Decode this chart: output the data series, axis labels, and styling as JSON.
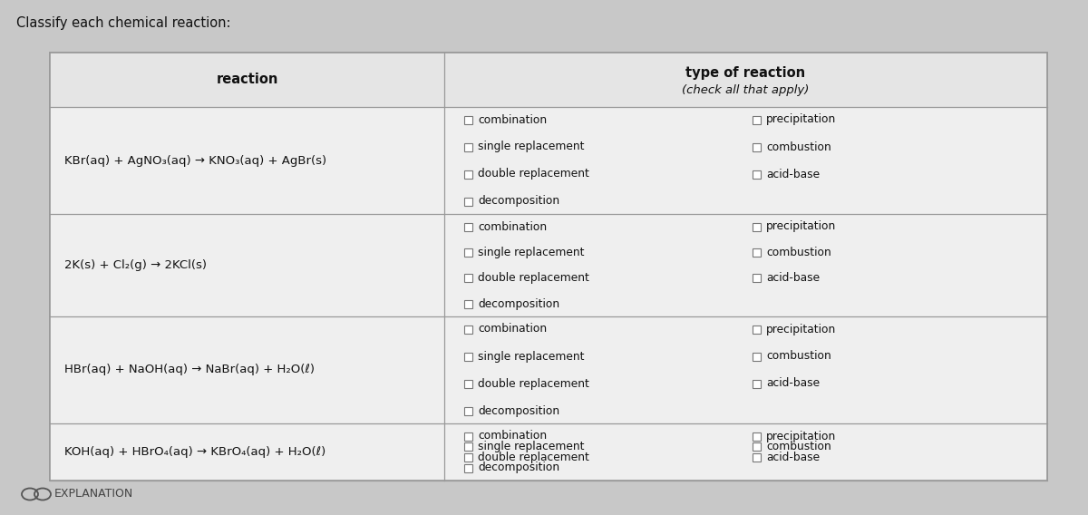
{
  "title": "Classify each chemical reaction:",
  "header_col1": "reaction",
  "header_col2_line1": "type of reaction",
  "header_col2_line2": "(check all that apply)",
  "reactions": [
    "KBr(aq) + AgNO₃(aq) → KNO₃(aq) + AgBr(s)",
    "2K(s) + Cl₂(g) → 2KCl(s)",
    "HBr(aq) + NaOH(aq) → NaBr(aq) + H₂O(ℓ)",
    "KOH(aq) + HBrO₄(aq) → KBrO₄(aq) + H₂O(ℓ)"
  ],
  "checkboxes_left": [
    "combination",
    "single replacement",
    "double replacement",
    "decomposition"
  ],
  "checkboxes_right": [
    "precipitation",
    "combustion",
    "acid-base"
  ],
  "bg_color": "#c8c8c8",
  "table_bg_white": "#ffffff",
  "row_bg": "#ebebeb",
  "header_bg": "#e2e2e2",
  "border_color": "#999999",
  "text_color": "#111111",
  "title_fontsize": 10.5,
  "reaction_fontsize": 9.5,
  "checkbox_fontsize": 8.8,
  "header_fontsize": 10.5
}
